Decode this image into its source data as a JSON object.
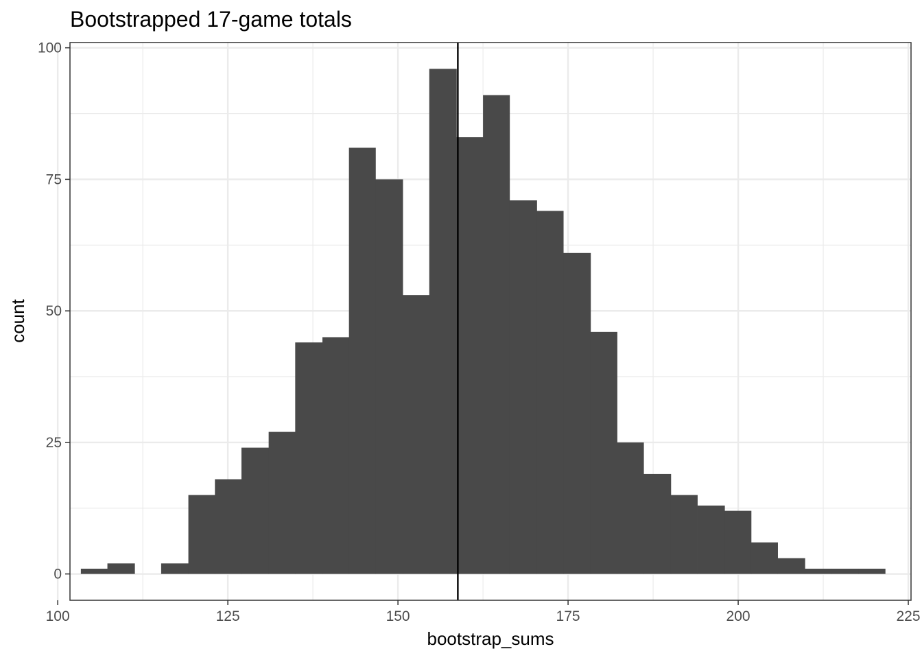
{
  "chart_data": {
    "type": "bar",
    "title": "Bootstrapped 17-game totals",
    "xlabel": "bootstrap_sums",
    "ylabel": "count",
    "xlim": [
      101.8,
      225.4
    ],
    "ylim": [
      -5,
      101
    ],
    "x_ticks": [
      100,
      125,
      150,
      175,
      200,
      225
    ],
    "y_ticks": [
      0,
      25,
      50,
      75,
      100
    ],
    "grid": true,
    "bins": [
      {
        "x0": 103.4,
        "x1": 107.3,
        "count": 1
      },
      {
        "x0": 107.3,
        "x1": 111.3,
        "count": 2
      },
      {
        "x0": 111.3,
        "x1": 115.2,
        "count": 0
      },
      {
        "x0": 115.2,
        "x1": 119.2,
        "count": 2
      },
      {
        "x0": 119.2,
        "x1": 123.1,
        "count": 15
      },
      {
        "x0": 123.1,
        "x1": 127.0,
        "count": 18
      },
      {
        "x0": 127.0,
        "x1": 131.0,
        "count": 24
      },
      {
        "x0": 131.0,
        "x1": 134.9,
        "count": 27
      },
      {
        "x0": 134.9,
        "x1": 138.9,
        "count": 44
      },
      {
        "x0": 138.9,
        "x1": 142.8,
        "count": 45
      },
      {
        "x0": 142.8,
        "x1": 146.7,
        "count": 81
      },
      {
        "x0": 146.7,
        "x1": 150.7,
        "count": 75
      },
      {
        "x0": 150.7,
        "x1": 154.6,
        "count": 53
      },
      {
        "x0": 154.6,
        "x1": 158.6,
        "count": 96
      },
      {
        "x0": 158.6,
        "x1": 162.5,
        "count": 83
      },
      {
        "x0": 162.5,
        "x1": 166.4,
        "count": 91
      },
      {
        "x0": 166.4,
        "x1": 170.4,
        "count": 71
      },
      {
        "x0": 170.4,
        "x1": 174.3,
        "count": 69
      },
      {
        "x0": 174.3,
        "x1": 178.3,
        "count": 61
      },
      {
        "x0": 178.3,
        "x1": 182.2,
        "count": 46
      },
      {
        "x0": 182.2,
        "x1": 186.1,
        "count": 25
      },
      {
        "x0": 186.1,
        "x1": 190.1,
        "count": 19
      },
      {
        "x0": 190.1,
        "x1": 194.0,
        "count": 15
      },
      {
        "x0": 194.0,
        "x1": 198.0,
        "count": 13
      },
      {
        "x0": 198.0,
        "x1": 201.9,
        "count": 12
      },
      {
        "x0": 201.9,
        "x1": 205.8,
        "count": 6
      },
      {
        "x0": 205.8,
        "x1": 209.8,
        "count": 3
      },
      {
        "x0": 209.8,
        "x1": 213.7,
        "count": 1
      },
      {
        "x0": 213.7,
        "x1": 217.7,
        "count": 1
      },
      {
        "x0": 217.7,
        "x1": 221.6,
        "count": 1
      }
    ],
    "reference_line": {
      "x": 158.8
    },
    "colors": {
      "bar": "#494949",
      "grid": "#ebebeb",
      "panel_border": "#333333",
      "reference_line": "#000000",
      "tick_text": "#4d4d4d",
      "title_text": "#000000"
    }
  }
}
